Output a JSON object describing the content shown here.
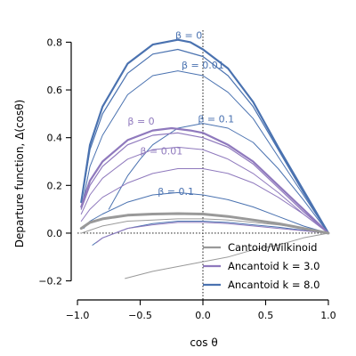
{
  "chart_data": {
    "type": "line",
    "xlabel": "cos θ",
    "ylabel": "Departure function, Δ(cosθ)",
    "xlim": [
      -1.05,
      1.05
    ],
    "ylim": [
      -0.25,
      0.85
    ],
    "x_ticks": [
      -1.0,
      -0.5,
      0.0,
      0.5,
      1.0
    ],
    "x_tick_labels": [
      "−1.0",
      "−0.5",
      "0.0",
      "0.5",
      "1.0"
    ],
    "y_ticks": [
      -0.2,
      0.0,
      0.2,
      0.4,
      0.6,
      0.8
    ],
    "y_tick_labels": [
      "−0.2",
      "0.0",
      "0.2",
      "0.4",
      "0.6",
      "0.8"
    ],
    "grid": false,
    "reference_lines": {
      "horizontal_y": 0.0,
      "vertical_x": 0.0,
      "style": "dotted"
    },
    "colors": {
      "cantoid": "#999999",
      "ancantoid_3": "#8f79bd",
      "ancantoid_8": "#4a72b0"
    },
    "legend": {
      "position": "bottom-right",
      "entries": [
        {
          "label": "Cantoid/Wilkinoid",
          "color_key": "cantoid"
        },
        {
          "label": "Ancantoid k = 3.0",
          "color_key": "ancantoid_3"
        },
        {
          "label": "Ancantoid k = 8.0",
          "color_key": "ancantoid_8"
        }
      ]
    },
    "series": [
      {
        "color_key": "ancantoid_8",
        "width": 2.2,
        "x": [
          -0.97,
          -0.9,
          -0.8,
          -0.6,
          -0.4,
          -0.2,
          -0.1,
          0.0,
          0.2,
          0.4,
          0.6,
          0.8,
          1.0
        ],
        "y": [
          0.13,
          0.37,
          0.53,
          0.71,
          0.79,
          0.81,
          0.8,
          0.77,
          0.69,
          0.55,
          0.36,
          0.18,
          0.0
        ]
      },
      {
        "color_key": "ancantoid_8",
        "width": 1.2,
        "x": [
          -0.97,
          -0.9,
          -0.8,
          -0.6,
          -0.4,
          -0.2,
          0.0,
          0.2,
          0.4,
          0.6,
          0.8,
          1.0
        ],
        "y": [
          0.13,
          0.35,
          0.5,
          0.67,
          0.75,
          0.77,
          0.74,
          0.66,
          0.53,
          0.35,
          0.17,
          0.0
        ]
      },
      {
        "color_key": "ancantoid_8",
        "width": 1.0,
        "x": [
          -0.97,
          -0.9,
          -0.8,
          -0.6,
          -0.4,
          -0.2,
          0.0,
          0.2,
          0.4,
          0.6,
          0.8,
          1.0
        ],
        "y": [
          0.1,
          0.28,
          0.41,
          0.58,
          0.66,
          0.68,
          0.66,
          0.59,
          0.48,
          0.32,
          0.16,
          0.0
        ]
      },
      {
        "color_key": "ancantoid_8",
        "width": 1.0,
        "x": [
          -0.75,
          -0.6,
          -0.5,
          -0.4,
          -0.2,
          0.0,
          0.2,
          0.4,
          0.6,
          0.8,
          1.0
        ],
        "y": [
          0.1,
          0.24,
          0.31,
          0.37,
          0.44,
          0.46,
          0.44,
          0.38,
          0.27,
          0.14,
          0.0
        ]
      },
      {
        "color_key": "ancantoid_8",
        "width": 1.0,
        "x": [
          -0.95,
          -0.9,
          -0.8,
          -0.6,
          -0.4,
          -0.2,
          0.0,
          0.2,
          0.4,
          0.6,
          0.8,
          1.0
        ],
        "y": [
          0.02,
          0.05,
          0.08,
          0.13,
          0.16,
          0.17,
          0.16,
          0.14,
          0.11,
          0.07,
          0.03,
          0.0
        ]
      },
      {
        "color_key": "ancantoid_3",
        "width": 2.2,
        "x": [
          -0.97,
          -0.9,
          -0.8,
          -0.6,
          -0.4,
          -0.25,
          -0.1,
          0.0,
          0.2,
          0.4,
          0.6,
          0.8,
          1.0
        ],
        "y": [
          0.11,
          0.22,
          0.3,
          0.39,
          0.43,
          0.44,
          0.43,
          0.42,
          0.37,
          0.3,
          0.2,
          0.1,
          0.0
        ]
      },
      {
        "color_key": "ancantoid_3",
        "width": 1.2,
        "x": [
          -0.97,
          -0.9,
          -0.8,
          -0.6,
          -0.4,
          -0.2,
          0.0,
          0.2,
          0.4,
          0.6,
          0.8,
          1.0
        ],
        "y": [
          0.1,
          0.2,
          0.28,
          0.37,
          0.41,
          0.42,
          0.4,
          0.36,
          0.29,
          0.19,
          0.09,
          0.0
        ]
      },
      {
        "color_key": "ancantoid_3",
        "width": 1.0,
        "x": [
          -0.97,
          -0.9,
          -0.8,
          -0.6,
          -0.4,
          -0.2,
          0.0,
          0.2,
          0.4,
          0.6,
          0.8,
          1.0
        ],
        "y": [
          0.08,
          0.16,
          0.23,
          0.31,
          0.35,
          0.36,
          0.35,
          0.31,
          0.25,
          0.17,
          0.08,
          0.0
        ]
      },
      {
        "color_key": "ancantoid_3",
        "width": 1.0,
        "x": [
          -0.97,
          -0.9,
          -0.8,
          -0.6,
          -0.4,
          -0.2,
          0.0,
          0.2,
          0.4,
          0.6,
          0.8,
          1.0
        ],
        "y": [
          0.05,
          0.1,
          0.15,
          0.21,
          0.25,
          0.27,
          0.27,
          0.25,
          0.21,
          0.15,
          0.08,
          0.0
        ]
      },
      {
        "color_key": "ancantoid_8",
        "width": 1.0,
        "x": [
          -0.88,
          -0.8,
          -0.6,
          -0.4,
          -0.2,
          0.0,
          0.2,
          0.4,
          0.6,
          0.8,
          1.0
        ],
        "y": [
          -0.05,
          -0.02,
          0.02,
          0.04,
          0.05,
          0.05,
          0.045,
          0.035,
          0.025,
          0.012,
          0.0
        ]
      },
      {
        "color_key": "ancantoid_3",
        "width": 1.0,
        "x": [
          -0.85,
          -0.8,
          -0.6,
          -0.4,
          -0.2,
          0.0,
          0.2,
          0.4,
          0.6,
          0.8,
          1.0
        ],
        "y": [
          -0.04,
          -0.02,
          0.02,
          0.035,
          0.045,
          0.045,
          0.04,
          0.03,
          0.02,
          0.01,
          0.0
        ]
      },
      {
        "color_key": "cantoid",
        "width": 1.0,
        "x": [
          -0.62,
          -0.4,
          -0.2,
          0.0,
          0.2,
          0.4,
          0.6,
          0.8,
          1.0
        ],
        "y": [
          -0.19,
          -0.16,
          -0.14,
          -0.12,
          -0.1,
          -0.07,
          -0.05,
          -0.02,
          0.0
        ]
      },
      {
        "color_key": "cantoid",
        "width": 1.0,
        "x": [
          -0.97,
          -0.8,
          -0.6,
          -0.4,
          -0.2,
          0.0,
          0.2,
          0.4,
          0.6,
          0.8,
          1.0
        ],
        "y": [
          0.0,
          0.03,
          0.05,
          0.055,
          0.06,
          0.06,
          0.055,
          0.045,
          0.035,
          0.02,
          0.0
        ]
      },
      {
        "color_key": "cantoid",
        "width": 3.0,
        "x": [
          -0.97,
          -0.9,
          -0.8,
          -0.6,
          -0.4,
          -0.2,
          0.0,
          0.2,
          0.4,
          0.6,
          0.8,
          1.0
        ],
        "y": [
          0.02,
          0.045,
          0.06,
          0.075,
          0.08,
          0.082,
          0.08,
          0.07,
          0.055,
          0.04,
          0.02,
          0.0
        ]
      }
    ],
    "annotations": [
      {
        "text": "β = 0",
        "x": -0.22,
        "y": 0.815,
        "color_key": "ancantoid_8"
      },
      {
        "text": "β = 0.01",
        "x": -0.17,
        "y": 0.69,
        "color_key": "ancantoid_8"
      },
      {
        "text": "β = 0.1",
        "x": -0.04,
        "y": 0.465,
        "color_key": "ancantoid_8"
      },
      {
        "text": "β = 0",
        "x": -0.6,
        "y": 0.455,
        "color_key": "ancantoid_3"
      },
      {
        "text": "β = 0.01",
        "x": -0.5,
        "y": 0.33,
        "color_key": "ancantoid_3"
      },
      {
        "text": "β = 0.1",
        "x": -0.36,
        "y": 0.16,
        "color_key": "ancantoid_8"
      }
    ]
  }
}
